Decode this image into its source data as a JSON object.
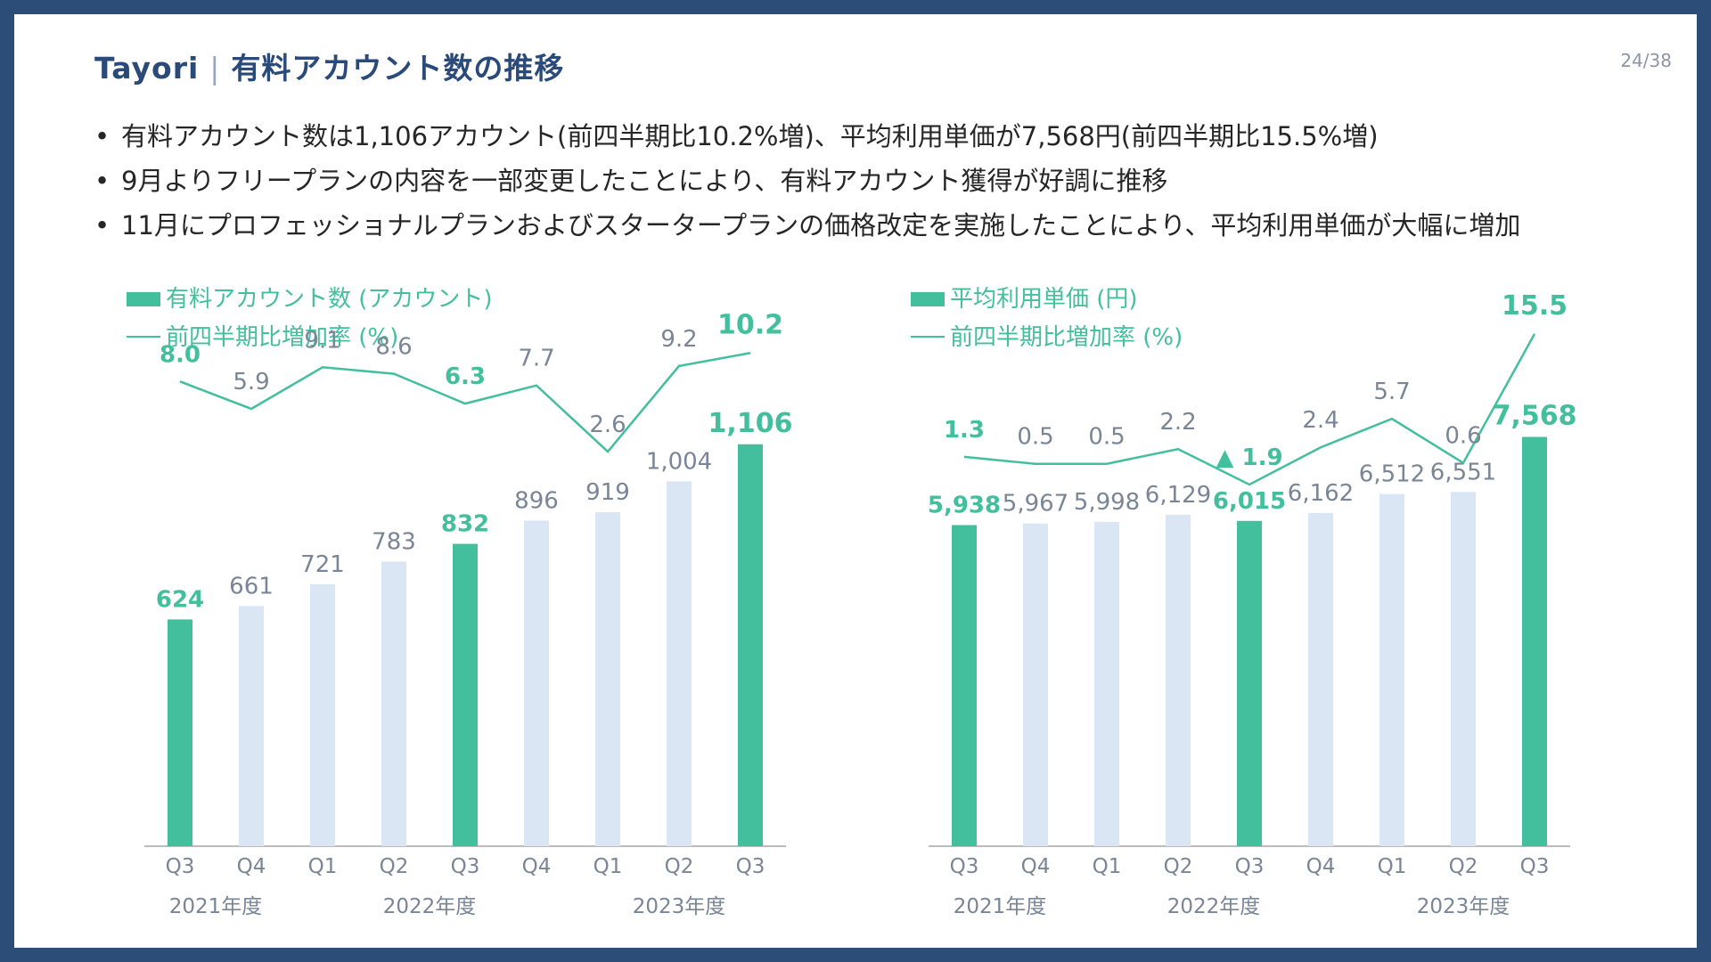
{
  "header": {
    "brand": "Tayori",
    "separator": "|",
    "title": "有料アカウント数の推移",
    "page_number": "24/38"
  },
  "bullets": [
    "有料アカウント数は1,106アカウント(前四半期比10.2%増)、平均利用単価が7,568円(前四半期比15.5%増)",
    "9月よりフリープランの内容を一部変更したことにより、有料アカウント獲得が好調に推移",
    "11月にプロフェッショナルプランおよびスタータープランの価格改定を実施したことにより、平均利用単価が大幅に増加"
  ],
  "colors": {
    "highlight": "#43bf9e",
    "muted_bar": "#dae6f4",
    "line": "#43bf9e",
    "muted_label": "#7a8596",
    "axis": "#a6a6a6",
    "title": "#2a4b7a"
  },
  "chart_data": [
    {
      "type": "bar",
      "id": "accounts",
      "categories": [
        "Q3",
        "Q4",
        "Q1",
        "Q2",
        "Q3",
        "Q4",
        "Q1",
        "Q2",
        "Q3"
      ],
      "year_labels": [
        {
          "label": "2021年度",
          "from": 0,
          "to": 1
        },
        {
          "label": "2022年度",
          "from": 2,
          "to": 5
        },
        {
          "label": "2023年度",
          "from": 6,
          "to": 8
        }
      ],
      "highlight": [
        true,
        false,
        false,
        false,
        true,
        false,
        false,
        false,
        true
      ],
      "bar_series": {
        "name": "有料アカウント数 (アカウント)",
        "values": [
          624,
          661,
          721,
          783,
          832,
          896,
          919,
          1004,
          1106
        ],
        "labels": [
          "624",
          "661",
          "721",
          "783",
          "832",
          "896",
          "919",
          "1,004",
          "1,106"
        ]
      },
      "line_series": {
        "name": "前四半期比増加率 (%)",
        "values": [
          8.0,
          5.9,
          9.1,
          8.6,
          6.3,
          7.7,
          2.6,
          9.2,
          10.2
        ],
        "labels": [
          "8.0",
          "5.9",
          "9.1",
          "8.6",
          "6.3",
          "7.7",
          "2.6",
          "9.2",
          "10.2"
        ]
      },
      "ylim": [
        0,
        1250
      ],
      "line_ylim": [
        0,
        12
      ]
    },
    {
      "type": "bar",
      "id": "unit_price",
      "categories": [
        "Q3",
        "Q4",
        "Q1",
        "Q2",
        "Q3",
        "Q4",
        "Q1",
        "Q2",
        "Q3"
      ],
      "year_labels": [
        {
          "label": "2021年度",
          "from": 0,
          "to": 1
        },
        {
          "label": "2022年度",
          "from": 2,
          "to": 5
        },
        {
          "label": "2023年度",
          "from": 6,
          "to": 8
        }
      ],
      "highlight": [
        true,
        false,
        false,
        false,
        true,
        false,
        false,
        false,
        true
      ],
      "bar_series": {
        "name": "平均利用単価 (円)",
        "values": [
          5938,
          5967,
          5998,
          6129,
          6015,
          6162,
          6512,
          6551,
          7568
        ],
        "labels": [
          "5,938",
          "5,967",
          "5,998",
          "6,129",
          "6,015",
          "6,162",
          "6,512",
          "6,551",
          "7,568"
        ]
      },
      "line_series": {
        "name": "前四半期比増加率 (%)",
        "values": [
          1.3,
          0.5,
          0.5,
          2.2,
          -1.9,
          2.4,
          5.7,
          0.6,
          15.5
        ],
        "labels": [
          "1.3",
          "0.5",
          "0.5",
          "2.2",
          "▲ 1.9",
          "2.4",
          "5.7",
          "0.6",
          "15.5"
        ]
      },
      "ylim": [
        0,
        8400
      ],
      "line_ylim": [
        -2,
        16
      ]
    }
  ]
}
